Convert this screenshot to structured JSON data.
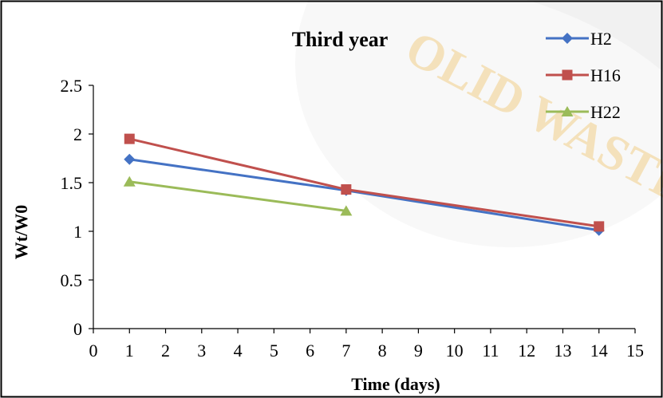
{
  "chart_data": {
    "type": "line",
    "title": "Third year",
    "xlabel": "Time (days)",
    "ylabel": "Wt/W0",
    "xlim": [
      0,
      15
    ],
    "ylim": [
      0,
      2.5
    ],
    "xticks": [
      0,
      1,
      2,
      3,
      4,
      5,
      6,
      7,
      8,
      9,
      10,
      11,
      12,
      13,
      14,
      15
    ],
    "yticks": [
      0,
      0.5,
      1,
      1.5,
      2,
      2.5
    ],
    "ytick_labels": [
      "0",
      "0.5",
      "1",
      "1.5",
      "2",
      "2.5"
    ],
    "grid": false,
    "legend_position": "top-right",
    "series": [
      {
        "name": "H2",
        "color": "#4472c4",
        "marker": "diamond",
        "x": [
          1,
          7,
          14
        ],
        "y": [
          1.74,
          1.42,
          1.01
        ]
      },
      {
        "name": "H16",
        "color": "#c0504d",
        "marker": "square",
        "x": [
          1,
          7,
          14
        ],
        "y": [
          1.95,
          1.43,
          1.05
        ]
      },
      {
        "name": "H22",
        "color": "#9bbb59",
        "marker": "triangle",
        "x": [
          1,
          7
        ],
        "y": [
          1.51,
          1.21
        ]
      }
    ]
  },
  "watermark": {
    "text": "OLID WASTE INSTITU",
    "color": "#f1cf8a"
  }
}
